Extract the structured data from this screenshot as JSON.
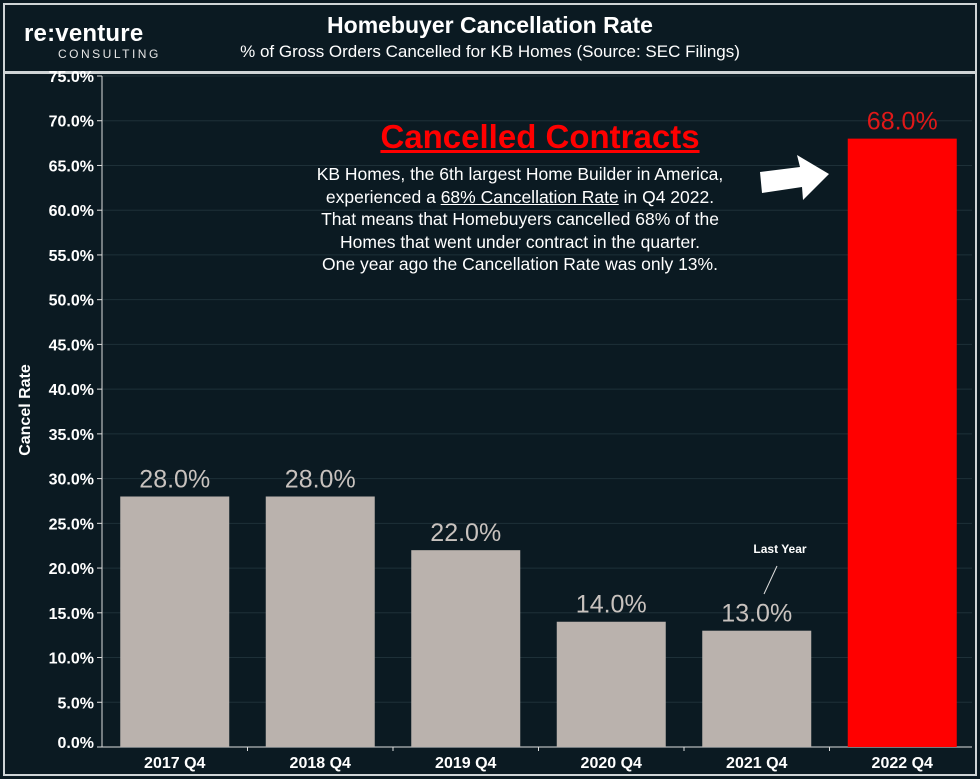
{
  "logo": {
    "main": "re:venture",
    "sub": "CONSULTING"
  },
  "header": {
    "title": "Homebuyer Cancellation Rate",
    "subtitle": "% of Gross Orders Cancelled for KB Homes (Source: SEC Filings)"
  },
  "annotation": {
    "title": "Cancelled Contracts",
    "line1": "KB Homes, the 6th largest Home Builder in America,",
    "line2_pre": "experienced a ",
    "line2_link": "68% Cancellation Rate",
    "line2_post": " in Q4 2022.",
    "line3": "That means that Homebuyers cancelled 68% of the",
    "line4": "Homes that went under contract in the quarter.",
    "line5": "One year ago the Cancellation Rate was only 13%.",
    "last_year": "Last Year",
    "arrow_icon": "right-arrow"
  },
  "chart_data": {
    "type": "bar",
    "title": "Homebuyer Cancellation Rate",
    "subtitle": "% of Gross Orders Cancelled for KB Homes (Source: SEC Filings)",
    "xlabel": "",
    "ylabel": "Cancel Rate",
    "ylim": [
      0,
      75
    ],
    "yticks": [
      "0.0%",
      "5.0%",
      "10.0%",
      "15.0%",
      "20.0%",
      "25.0%",
      "30.0%",
      "35.0%",
      "40.0%",
      "45.0%",
      "50.0%",
      "55.0%",
      "60.0%",
      "65.0%",
      "70.0%",
      "75.0%"
    ],
    "categories": [
      "2017 Q4",
      "2018 Q4",
      "2019 Q4",
      "2020 Q4",
      "2021 Q4",
      "2022 Q4"
    ],
    "values": [
      28.0,
      28.0,
      22.0,
      14.0,
      13.0,
      68.0
    ],
    "data_labels": [
      "28.0%",
      "28.0%",
      "22.0%",
      "14.0%",
      "13.0%",
      "68.0%"
    ],
    "colors": [
      "#bab2ad",
      "#bab2ad",
      "#bab2ad",
      "#bab2ad",
      "#bab2ad",
      "#ff0000"
    ],
    "label_colors": [
      "#c8c2be",
      "#c8c2be",
      "#c8c2be",
      "#c8c2be",
      "#c8c2be",
      "#e01818"
    ],
    "grid": true,
    "background": "#0b1a22"
  }
}
